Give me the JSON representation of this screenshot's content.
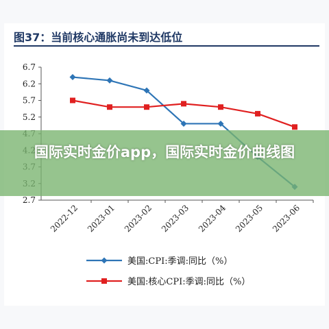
{
  "figure": {
    "title": "图37：当前核心通胀尚未到达低位"
  },
  "overlay": {
    "banner_text": "国际实时金价app，国际实时金价曲线图"
  },
  "chart_data": {
    "type": "line",
    "categories": [
      "2022-12",
      "2023-01",
      "2023-02",
      "2023-03",
      "2023-04",
      "2023-05",
      "2023-06"
    ],
    "yticks": [
      "6.7",
      "6.2",
      "5.7",
      "5.2",
      "4.7",
      "4.2",
      "3.7",
      "3.2",
      "2.7"
    ],
    "ylim": [
      2.7,
      6.7
    ],
    "grid": false,
    "legend_position": "bottom",
    "series": [
      {
        "name": "美国:CPI:季调:同比（%）",
        "color": "#2e75b6",
        "marker": "diamond",
        "values": [
          6.4,
          6.3,
          6.0,
          5.0,
          5.0,
          4.0,
          3.1
        ]
      },
      {
        "name": "美国:核心CPI:季调:同比（%）",
        "color": "#e02020",
        "marker": "square",
        "values": [
          5.7,
          5.5,
          5.5,
          5.6,
          5.5,
          5.3,
          4.9
        ]
      }
    ]
  }
}
